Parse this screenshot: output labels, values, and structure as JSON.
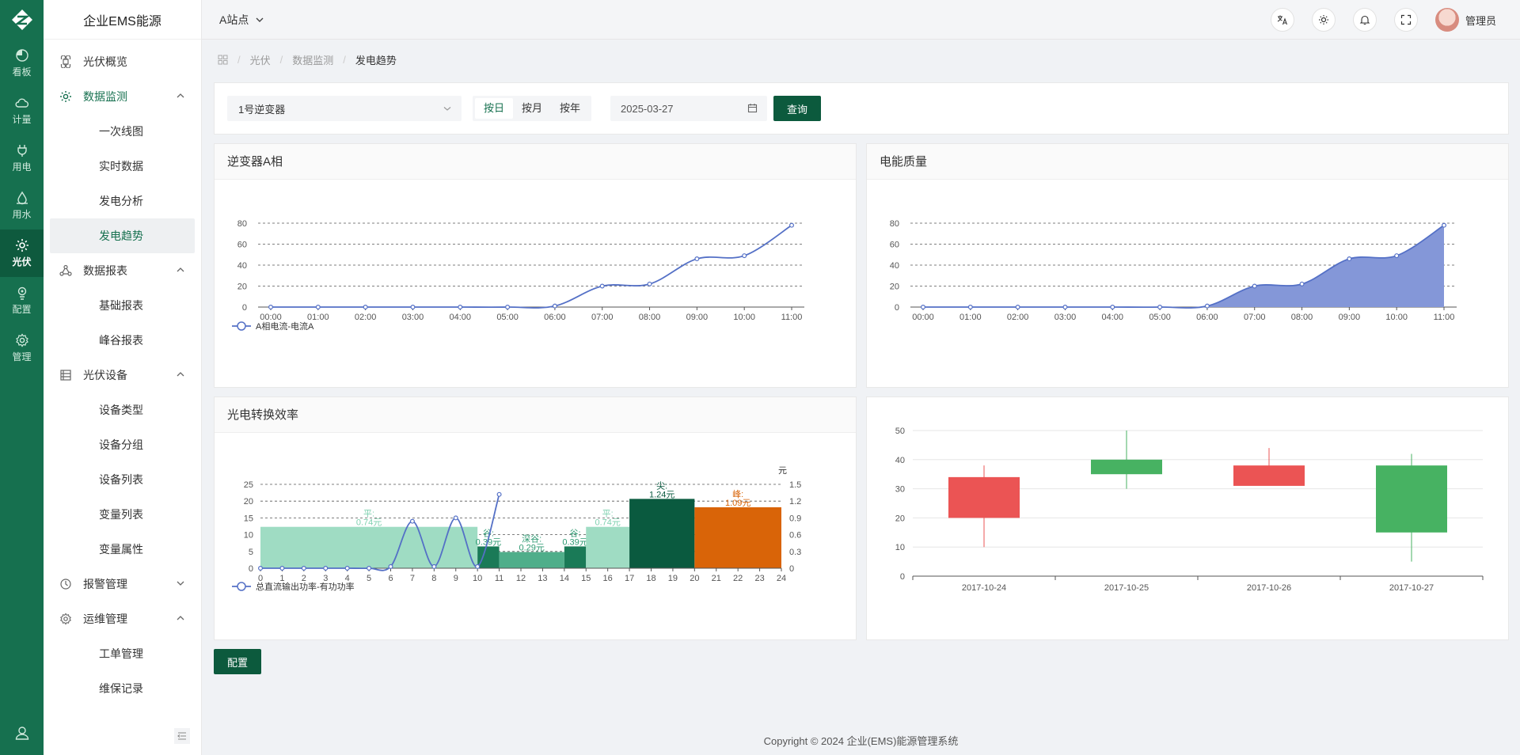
{
  "app": {
    "brand": "企业EMS能源"
  },
  "rail": {
    "items": [
      {
        "label": "看板",
        "icon": "dashboard-icon"
      },
      {
        "label": "计量",
        "icon": "cloud-icon"
      },
      {
        "label": "用电",
        "icon": "plug-icon"
      },
      {
        "label": "用水",
        "icon": "water-drop-icon"
      },
      {
        "label": "光伏",
        "icon": "sun-icon"
      },
      {
        "label": "配置",
        "icon": "config-icon"
      },
      {
        "label": "管理",
        "icon": "gear-icon"
      }
    ]
  },
  "sidebar": {
    "overview": "光伏概览",
    "monitor": "数据监测",
    "monitor_items": [
      "一次线图",
      "实时数据",
      "发电分析",
      "发电趋势"
    ],
    "report": "数据报表",
    "report_items": [
      "基础报表",
      "峰谷报表"
    ],
    "device": "光伏设备",
    "device_items": [
      "设备类型",
      "设备分组",
      "设备列表",
      "变量列表",
      "变量属性"
    ],
    "alarm": "报警管理",
    "ops": "运维管理",
    "ops_items": [
      "工单管理",
      "维保记录"
    ]
  },
  "header": {
    "site": "A站点",
    "user": "管理员"
  },
  "breadcrumb": {
    "items": [
      "光伏",
      "数据监测"
    ],
    "current": "发电趋势"
  },
  "filter": {
    "inverter": "1号逆变器",
    "modes": [
      "按日",
      "按月",
      "按年"
    ],
    "active_mode": "按日",
    "date": "2025-03-27",
    "query": "查询"
  },
  "panels": {
    "a_phase": "逆变器A相",
    "quality": "电能质量",
    "efficiency": "光电转换效率"
  },
  "config_button": "配置",
  "footer": "Copyright © 2024 企业(EMS)能源管理系统",
  "colors": {
    "brand": "#16704f",
    "line": "#5470c6",
    "area": "#8497d8",
    "up": "#eb5454",
    "down": "#47b262"
  },
  "chart_data": [
    {
      "type": "line",
      "x": [
        "00:00",
        "01:00",
        "02:00",
        "03:00",
        "04:00",
        "05:00",
        "06:00",
        "07:00",
        "08:00",
        "09:00",
        "10:00",
        "11:00"
      ],
      "series": [
        {
          "name": "A相电流-电流A",
          "values": [
            0,
            0,
            0,
            0,
            0,
            0,
            1,
            20,
            22,
            46,
            49,
            78
          ]
        }
      ],
      "ylim": [
        0,
        80
      ],
      "yticks": [
        "0",
        "20",
        "40",
        "60",
        "80"
      ],
      "grid": true,
      "legend": "bottom-left"
    },
    {
      "type": "area",
      "x": [
        "00:00",
        "01:00",
        "02:00",
        "03:00",
        "04:00",
        "05:00",
        "06:00",
        "07:00",
        "08:00",
        "09:00",
        "10:00",
        "11:00"
      ],
      "values": [
        0,
        0,
        0,
        0,
        0,
        0,
        1,
        20,
        22,
        46,
        49,
        78
      ],
      "ylim": [
        0,
        80
      ],
      "yticks": [
        "0",
        "20",
        "40",
        "60",
        "80"
      ],
      "grid": true
    },
    {
      "type": "bar",
      "x_ticks": [
        "0",
        "1",
        "2",
        "3",
        "4",
        "5",
        "6",
        "7",
        "8",
        "9",
        "10",
        "11",
        "12",
        "13",
        "14",
        "15",
        "16",
        "17",
        "18",
        "19",
        "20",
        "21",
        "22",
        "23",
        "24"
      ],
      "y_left_ticks": [
        "0",
        "5",
        "10",
        "15",
        "20",
        "25"
      ],
      "y_right_ticks": [
        "0",
        "0.3",
        "0.6",
        "0.9",
        "1.2",
        "1.5"
      ],
      "y_right_unit": "元",
      "price_bands": [
        {
          "start": 0,
          "end": 10,
          "price": 0.74,
          "label": "平:",
          "price_label": "0.74元",
          "color": "#9fdcc3"
        },
        {
          "start": 10,
          "end": 11,
          "price": 0.39,
          "label": "谷:",
          "price_label": "0.39元",
          "color": "#1a7a57"
        },
        {
          "start": 11,
          "end": 14,
          "price": 0.29,
          "label": "深谷:",
          "price_label": "0.29元",
          "color": "#4fae8a"
        },
        {
          "start": 14,
          "end": 15,
          "price": 0.39,
          "label": "谷:",
          "price_label": "0.39元",
          "color": "#1a7a57"
        },
        {
          "start": 15,
          "end": 17,
          "price": 0.74,
          "label": "平:",
          "price_label": "0.74元",
          "color": "#9fdcc3"
        },
        {
          "start": 17,
          "end": 20,
          "price": 1.24,
          "label": "尖:",
          "price_label": "1.24元",
          "color": "#0a5a3f"
        },
        {
          "start": 20,
          "end": 24,
          "price": 1.09,
          "label": "峰:",
          "price_label": "1.09元",
          "color": "#d96408"
        }
      ],
      "series": [
        {
          "name": "总直流输出功率-有功功率",
          "x": [
            0,
            1,
            2,
            3,
            4,
            5,
            6,
            7,
            8,
            9,
            10,
            11
          ],
          "values": [
            0,
            0,
            0,
            0,
            0,
            0,
            0.5,
            14,
            0.5,
            15,
            0.5,
            22
          ]
        }
      ],
      "ylim_left": [
        0,
        25
      ],
      "ylim_right": [
        0,
        1.5
      ],
      "legend": "bottom-left"
    },
    {
      "type": "candlestick",
      "categories": [
        "2017-10-24",
        "2017-10-25",
        "2017-10-26",
        "2017-10-27"
      ],
      "values": [
        [
          20,
          34,
          10,
          38
        ],
        [
          40,
          35,
          30,
          50
        ],
        [
          31,
          38,
          33,
          44
        ],
        [
          38,
          15,
          5,
          42
        ]
      ],
      "ylim": [
        0,
        50
      ],
      "yticks": [
        "0",
        "10",
        "20",
        "30",
        "40",
        "50"
      ]
    }
  ]
}
